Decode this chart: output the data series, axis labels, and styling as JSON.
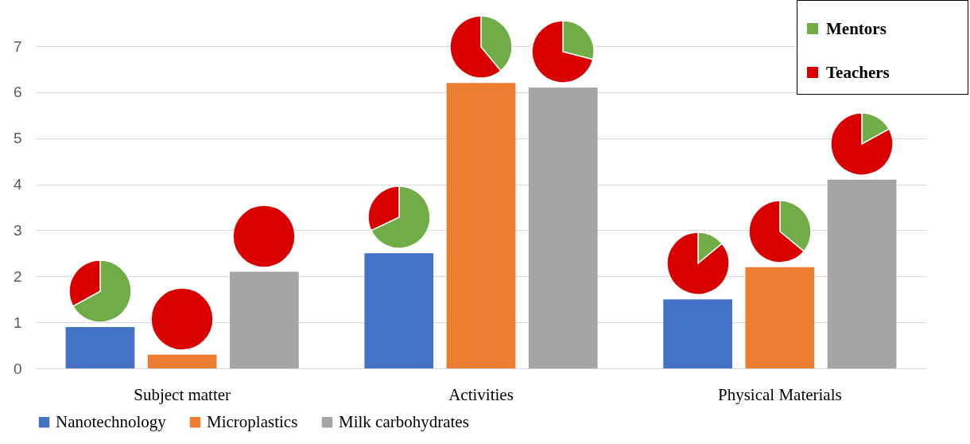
{
  "chart_data": [
    {
      "type": "bar",
      "categories": [
        "Subject matter",
        "Activities",
        "Physical Materials"
      ],
      "series": [
        {
          "name": "Nanotechnology",
          "color": "#4472c4",
          "values": [
            0.9,
            2.5,
            1.5
          ]
        },
        {
          "name": "Microplastics",
          "color": "#ed7d31",
          "values": [
            0.3,
            6.2,
            2.2
          ]
        },
        {
          "name": "Milk carbohydrates",
          "color": "#a5a5a5",
          "values": [
            2.1,
            6.1,
            4.1
          ]
        }
      ],
      "ylim": [
        0,
        7
      ],
      "yticks": [
        0,
        1,
        2,
        3,
        4,
        5,
        6,
        7
      ],
      "grid": "y",
      "legend": "bottom"
    },
    {
      "type": "pie",
      "categories": [
        "Mentors",
        "Teachers"
      ],
      "values": [
        67,
        33
      ],
      "colors": [
        "#70ad47",
        "#d90000"
      ],
      "legend": "top right"
    },
    {
      "type": "pie",
      "categories": [
        null,
        null
      ],
      "values": [
        0,
        100
      ],
      "colors": [
        "#70ad47",
        "#d90000"
      ]
    },
    {
      "type": "pie",
      "categories": [
        null,
        null
      ],
      "values": [
        0,
        100
      ],
      "colors": [
        "#70ad47",
        "#d90000"
      ]
    },
    {
      "type": "pie",
      "categories": [
        null,
        null
      ],
      "values": [
        68,
        32
      ],
      "colors": [
        "#70ad47",
        "#d90000"
      ]
    },
    {
      "type": "pie",
      "categories": [
        null,
        null
      ],
      "values": [
        39,
        61
      ],
      "colors": [
        "#70ad47",
        "#d90000"
      ]
    },
    {
      "type": "pie",
      "categories": [
        null,
        null
      ],
      "values": [
        29,
        71
      ],
      "colors": [
        "#70ad47",
        "#d90000"
      ]
    },
    {
      "type": "pie",
      "categories": [
        null,
        null
      ],
      "values": [
        14,
        86
      ],
      "colors": [
        "#70ad47",
        "#d90000"
      ]
    },
    {
      "type": "pie",
      "categories": [
        null,
        null
      ],
      "values": [
        36,
        64
      ],
      "colors": [
        "#70ad47",
        "#d90000"
      ]
    },
    {
      "type": "pie",
      "categories": [
        null,
        null
      ],
      "values": [
        17,
        83
      ],
      "colors": [
        "#70ad47",
        "#d90000"
      ]
    }
  ]
}
